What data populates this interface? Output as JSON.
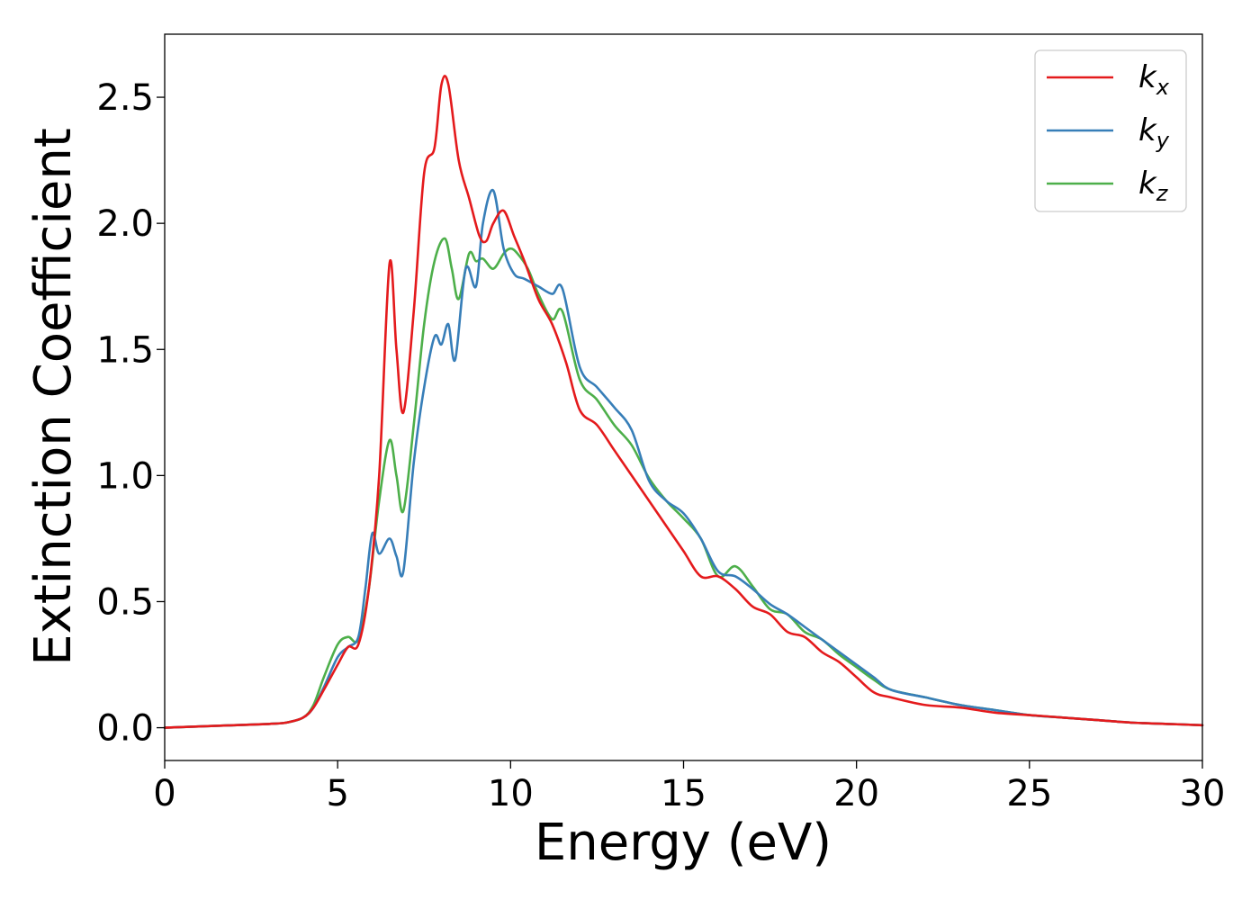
{
  "chart_data": {
    "type": "line",
    "xlabel": "Energy (eV)",
    "ylabel": "Extinction Coefficient",
    "xlim": [
      0,
      30
    ],
    "ylim": [
      -0.13,
      2.75
    ],
    "xticks": [
      0,
      5,
      10,
      15,
      20,
      25,
      30
    ],
    "xtick_labels": [
      "0",
      "5",
      "10",
      "15",
      "20",
      "25",
      "30"
    ],
    "yticks": [
      0.0,
      0.5,
      1.0,
      1.5,
      2.0,
      2.5
    ],
    "ytick_labels": [
      "0.0",
      "0.5",
      "1.0",
      "1.5",
      "2.0",
      "2.5"
    ],
    "grid": false,
    "legend_position": "top-right",
    "series": [
      {
        "name": "k_x",
        "label_main": "k",
        "label_sub": "x",
        "color": "#e41a1c",
        "x": [
          0,
          2,
          3,
          3.5,
          4,
          4.3,
          4.6,
          5,
          5.3,
          5.6,
          5.9,
          6.2,
          6.5,
          6.7,
          6.9,
          7.2,
          7.5,
          7.8,
          8.0,
          8.2,
          8.5,
          8.8,
          9.1,
          9.3,
          9.5,
          9.8,
          10.1,
          10.4,
          10.8,
          11.2,
          11.6,
          12.0,
          12.5,
          13.0,
          13.5,
          14.0,
          14.5,
          15.0,
          15.5,
          16.0,
          16.5,
          17.0,
          17.5,
          18.0,
          18.5,
          19.0,
          19.5,
          20.0,
          20.5,
          21.0,
          22.0,
          23.0,
          24.0,
          25.0,
          26.0,
          27.0,
          28.0,
          29.0,
          30.0
        ],
        "y": [
          0,
          0.01,
          0.015,
          0.02,
          0.04,
          0.08,
          0.15,
          0.25,
          0.32,
          0.33,
          0.55,
          1.0,
          1.84,
          1.5,
          1.25,
          1.65,
          2.2,
          2.3,
          2.55,
          2.55,
          2.25,
          2.1,
          1.95,
          1.93,
          2.0,
          2.05,
          1.95,
          1.85,
          1.7,
          1.6,
          1.45,
          1.26,
          1.2,
          1.1,
          1.0,
          0.9,
          0.8,
          0.7,
          0.6,
          0.6,
          0.55,
          0.48,
          0.45,
          0.38,
          0.36,
          0.3,
          0.26,
          0.2,
          0.14,
          0.12,
          0.09,
          0.08,
          0.06,
          0.05,
          0.04,
          0.03,
          0.02,
          0.015,
          0.01
        ]
      },
      {
        "name": "k_y",
        "label_main": "k",
        "label_sub": "y",
        "color": "#377eb8",
        "x": [
          0,
          2,
          3,
          3.5,
          4,
          4.3,
          4.6,
          5,
          5.3,
          5.6,
          5.8,
          6.0,
          6.2,
          6.5,
          6.7,
          6.9,
          7.2,
          7.5,
          7.8,
          8.0,
          8.2,
          8.4,
          8.7,
          9.0,
          9.2,
          9.5,
          9.8,
          10.1,
          10.4,
          10.8,
          11.2,
          11.5,
          12.0,
          12.5,
          13.0,
          13.5,
          14.0,
          14.5,
          15.0,
          15.5,
          16.0,
          16.5,
          17.0,
          17.5,
          18.0,
          18.5,
          19.0,
          19.5,
          20.0,
          20.5,
          21.0,
          22.0,
          23.0,
          24.0,
          25.0,
          26.0,
          27.0,
          28.0,
          29.0,
          30.0
        ],
        "y": [
          0,
          0.01,
          0.015,
          0.02,
          0.04,
          0.08,
          0.16,
          0.28,
          0.32,
          0.36,
          0.55,
          0.77,
          0.69,
          0.75,
          0.68,
          0.62,
          1.05,
          1.35,
          1.55,
          1.52,
          1.6,
          1.46,
          1.82,
          1.75,
          2.0,
          2.13,
          1.9,
          1.8,
          1.78,
          1.75,
          1.72,
          1.74,
          1.43,
          1.35,
          1.27,
          1.18,
          0.98,
          0.9,
          0.85,
          0.75,
          0.62,
          0.6,
          0.55,
          0.49,
          0.45,
          0.4,
          0.35,
          0.3,
          0.25,
          0.2,
          0.15,
          0.12,
          0.09,
          0.07,
          0.05,
          0.04,
          0.03,
          0.02,
          0.015,
          0.01
        ]
      },
      {
        "name": "k_z",
        "label_main": "k",
        "label_sub": "z",
        "color": "#4daf4a",
        "x": [
          0,
          2,
          3,
          3.5,
          4,
          4.3,
          4.6,
          5,
          5.3,
          5.6,
          5.9,
          6.2,
          6.5,
          6.7,
          6.9,
          7.2,
          7.5,
          7.8,
          8.1,
          8.3,
          8.5,
          8.8,
          9.0,
          9.2,
          9.5,
          9.8,
          10.0,
          10.2,
          10.5,
          10.8,
          11.2,
          11.5,
          12.0,
          12.5,
          13.0,
          13.5,
          14.0,
          14.5,
          15.0,
          15.5,
          16.0,
          16.5,
          17.0,
          17.5,
          18.0,
          18.5,
          19.0,
          19.5,
          20.0,
          20.5,
          21.0,
          22.0,
          23.0,
          24.0,
          25.0,
          26.0,
          27.0,
          28.0,
          29.0,
          30.0
        ],
        "y": [
          0,
          0.01,
          0.015,
          0.02,
          0.04,
          0.09,
          0.2,
          0.33,
          0.36,
          0.35,
          0.55,
          0.9,
          1.14,
          1.0,
          0.86,
          1.2,
          1.6,
          1.85,
          1.94,
          1.82,
          1.7,
          1.88,
          1.85,
          1.86,
          1.82,
          1.88,
          1.9,
          1.88,
          1.82,
          1.72,
          1.62,
          1.65,
          1.38,
          1.3,
          1.2,
          1.12,
          0.99,
          0.9,
          0.83,
          0.75,
          0.6,
          0.64,
          0.56,
          0.47,
          0.45,
          0.38,
          0.35,
          0.29,
          0.24,
          0.19,
          0.15,
          0.12,
          0.09,
          0.07,
          0.05,
          0.04,
          0.03,
          0.02,
          0.015,
          0.01
        ]
      }
    ]
  }
}
